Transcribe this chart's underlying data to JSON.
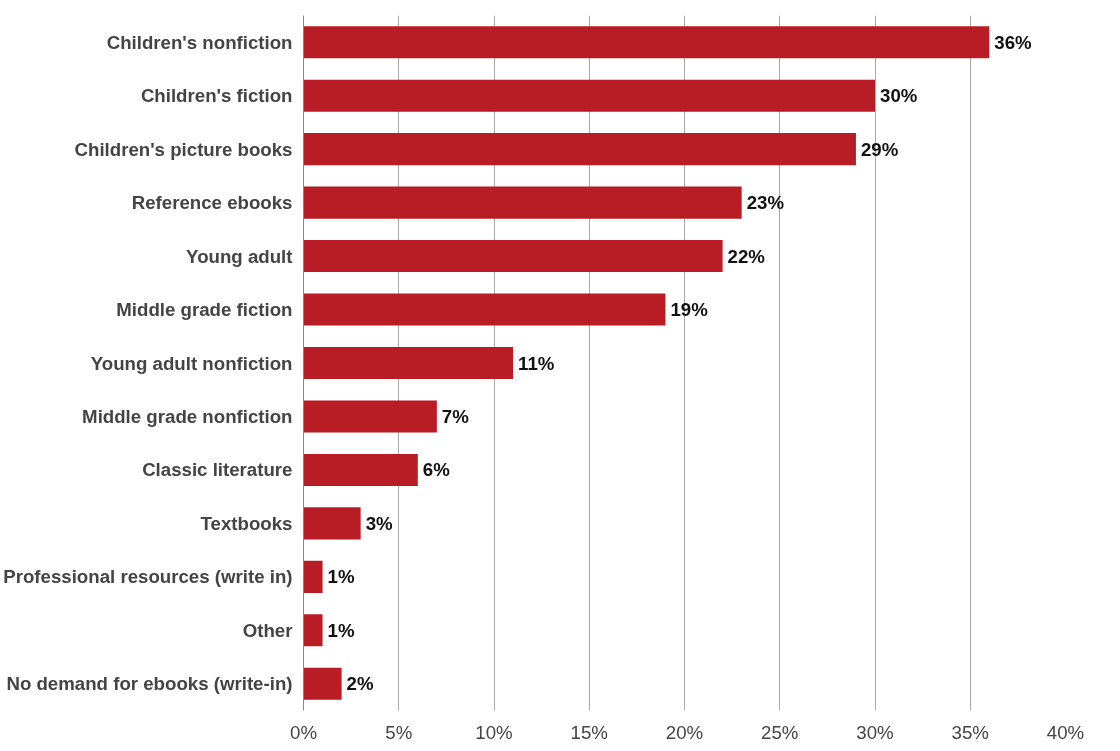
{
  "chart_data": {
    "type": "bar",
    "orientation": "horizontal",
    "categories": [
      "Children's nonfiction",
      "Children's fiction",
      "Children's picture books",
      "Reference ebooks",
      "Young adult",
      "Middle grade fiction",
      "Young adult nonfiction",
      "Middle grade nonfiction",
      "Classic literature",
      "Textbooks",
      "Professional resources (write in)",
      "Other",
      "No demand for ebooks (write-in)"
    ],
    "values": [
      36,
      30,
      29,
      23,
      22,
      19,
      11,
      7,
      6,
      3,
      1,
      1,
      2
    ],
    "color": "#b81c24",
    "value_labels": [
      "36%",
      "30%",
      "29%",
      "23%",
      "22%",
      "19%",
      "11%",
      "7%",
      "6%",
      "3%",
      "1%",
      "1%",
      "2%"
    ],
    "xlim": [
      0,
      40
    ],
    "xticks": [
      {
        "value": 0,
        "label": "0%"
      },
      {
        "value": 5,
        "label": "5%"
      },
      {
        "value": 10,
        "label": "10%"
      },
      {
        "value": 15,
        "label": "15%"
      },
      {
        "value": 20,
        "label": "20%"
      },
      {
        "value": 25,
        "label": "25%"
      },
      {
        "value": 30,
        "label": "30%"
      },
      {
        "value": 35,
        "label": "35%"
      },
      {
        "value": 40,
        "label": "40%"
      }
    ],
    "grid": "x"
  }
}
